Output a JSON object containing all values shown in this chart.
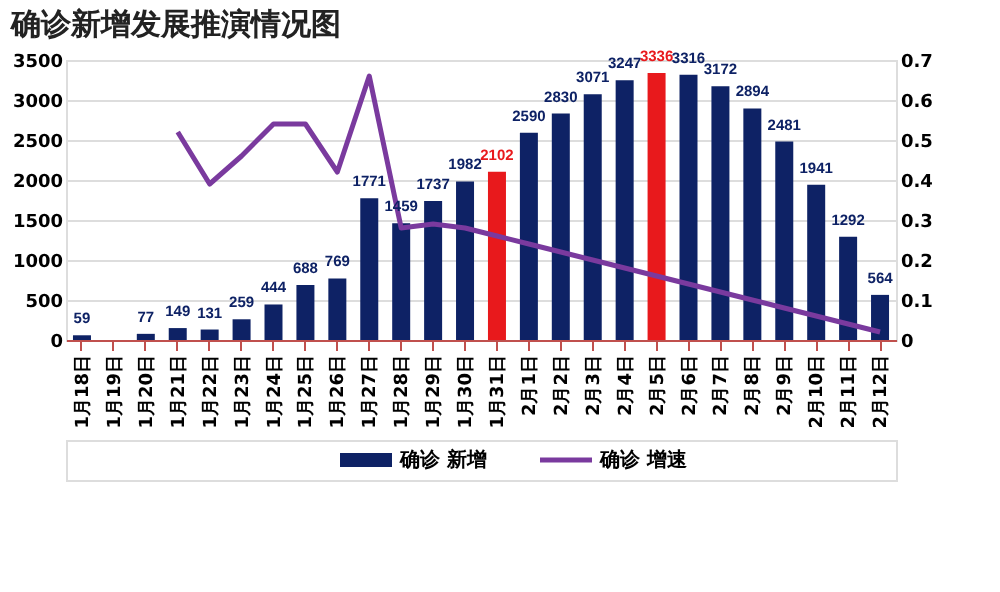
{
  "chart_data": {
    "type": "bar",
    "title": "确诊新增发展推演情况图",
    "categories": [
      "1月18日",
      "1月19日",
      "1月20日",
      "1月21日",
      "1月22日",
      "1月23日",
      "1月24日",
      "1月25日",
      "1月26日",
      "1月27日",
      "1月28日",
      "1月29日",
      "1月30日",
      "1月31日",
      "2月1日",
      "2月2日",
      "2月3日",
      "2月4日",
      "2月5日",
      "2月6日",
      "2月7日",
      "2月8日",
      "2月9日",
      "2月10日",
      "2月11日",
      "2月12日"
    ],
    "series": [
      {
        "name": "确诊 新增",
        "color": "#0e2265",
        "colors": [
          "#0e2265",
          "#0e2265",
          "#0e2265",
          "#0e2265",
          "#0e2265",
          "#0e2265",
          "#0e2265",
          "#0e2265",
          "#0e2265",
          "#0e2265",
          "#0e2265",
          "#0e2265",
          "#0e2265",
          "#e8191c",
          "#0e2265",
          "#0e2265",
          "#0e2265",
          "#0e2265",
          "#e8191c",
          "#0e2265",
          "#0e2265",
          "#0e2265",
          "#0e2265",
          "#0e2265",
          "#0e2265",
          "#0e2265"
        ],
        "data_labels": true,
        "values": [
          59,
          null,
          77,
          149,
          131,
          259,
          444,
          688,
          769,
          1771,
          1459,
          1737,
          1982,
          2102,
          2590,
          2830,
          3071,
          3247,
          3336,
          3316,
          3172,
          2894,
          2481,
          1941,
          1292,
          564
        ]
      },
      {
        "name": "确诊 增速",
        "type": "line",
        "axis": "y2",
        "color": "#7a3a9e",
        "values": [
          null,
          null,
          null,
          0.52,
          0.39,
          0.46,
          0.54,
          0.54,
          0.42,
          0.66,
          0.28,
          0.29,
          0.28,
          0.26,
          0.24,
          0.22,
          0.2,
          0.18,
          0.16,
          0.14,
          0.12,
          0.1,
          0.08,
          0.06,
          0.04,
          0.02
        ]
      }
    ],
    "ylim": [
      0,
      3500
    ],
    "yticks": [
      0,
      500,
      1000,
      1500,
      2000,
      2500,
      3000,
      3500
    ],
    "y2lim": [
      0,
      0.7
    ],
    "y2ticks": [
      0,
      0.1,
      0.2,
      0.3,
      0.4,
      0.5,
      0.6,
      0.7
    ],
    "grid": "y",
    "legend": "bottom",
    "marker": "none",
    "line_style": "solid"
  }
}
